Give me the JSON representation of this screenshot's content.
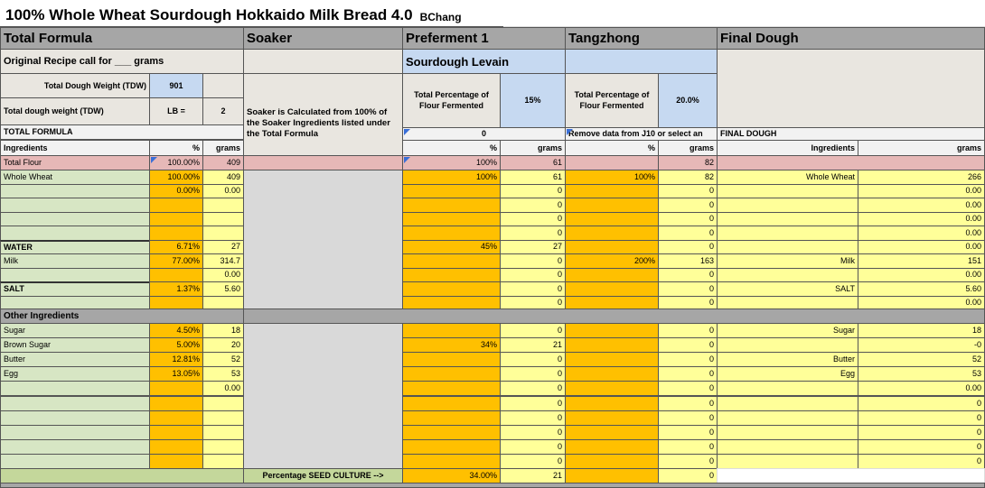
{
  "title": "100% Whole Wheat Sourdough Hokkaido Milk Bread 4.0",
  "author": "BChang",
  "sections": {
    "total_formula": "Total Formula",
    "soaker": "Soaker",
    "preferment": "Preferment 1",
    "tangzhong": "Tangzhong",
    "final_dough": "Final Dough"
  },
  "original_recipe_label": "Original Recipe call for ___ grams",
  "sourdough_levain": "Sourdough Levain",
  "tdw": {
    "label": "Total Dough Weight (TDW)",
    "value": "901"
  },
  "tdw_lb": {
    "label": "Total dough weight (TDW)",
    "unit": "LB =",
    "value": "2"
  },
  "soaker_note": "Soaker is Calculated from 100% of the Soaker Ingredients listed under the Total Formula",
  "pct_flour_fermented_label": "Total Percentage of Flour Fermented",
  "preferment_pct": "15%",
  "tangzhong_pct": "20.0%",
  "preferment_zero": "0",
  "remove_data_note": "Remove data from J10 or select an",
  "total_formula_label": "TOTAL FORMULA",
  "final_dough_label": "FINAL DOUGH",
  "col": {
    "ingredients": "Ingredients",
    "pct": "%",
    "grams": "grams"
  },
  "total_flour": {
    "label": "Total Flour",
    "pct": "100.00%",
    "grams": "409",
    "pre_pct": "100%",
    "pre_grams": "61",
    "tang_grams": "82"
  },
  "rows": [
    {
      "name": "Whole Wheat",
      "pct": "100.00%",
      "grams": "409",
      "pre_pct": "100%",
      "pre_grams": "61",
      "tang_pct": "100%",
      "tang_grams": "82",
      "fd_name": "Whole Wheat",
      "fd_grams": "266"
    },
    {
      "name": "",
      "pct": "0.00%",
      "grams": "0.00",
      "pre_pct": "",
      "pre_grams": "0",
      "tang_pct": "",
      "tang_grams": "0",
      "fd_name": "",
      "fd_grams": "0.00"
    },
    {
      "name": "",
      "pct": "",
      "grams": "",
      "pre_pct": "",
      "pre_grams": "0",
      "tang_pct": "",
      "tang_grams": "0",
      "fd_name": "",
      "fd_grams": "0.00"
    },
    {
      "name": "",
      "pct": "",
      "grams": "",
      "pre_pct": "",
      "pre_grams": "0",
      "tang_pct": "",
      "tang_grams": "0",
      "fd_name": "",
      "fd_grams": "0.00"
    },
    {
      "name": "",
      "pct": "",
      "grams": "",
      "pre_pct": "",
      "pre_grams": "0",
      "tang_pct": "",
      "tang_grams": "0",
      "fd_name": "",
      "fd_grams": "0.00"
    },
    {
      "name": "WATER",
      "pct": "6.71%",
      "grams": "27",
      "pre_pct": "45%",
      "pre_grams": "27",
      "tang_pct": "",
      "tang_grams": "0",
      "fd_name": "",
      "fd_grams": "0.00"
    },
    {
      "name": "Milk",
      "pct": "77.00%",
      "grams": "314.7",
      "pre_pct": "",
      "pre_grams": "0",
      "tang_pct": "200%",
      "tang_grams": "163",
      "fd_name": "Milk",
      "fd_grams": "151"
    },
    {
      "name": "",
      "pct": "",
      "grams": "0.00",
      "pre_pct": "",
      "pre_grams": "0",
      "tang_pct": "",
      "tang_grams": "0",
      "fd_name": "",
      "fd_grams": "0.00"
    },
    {
      "name": "SALT",
      "pct": "1.37%",
      "grams": "5.60",
      "pre_pct": "",
      "pre_grams": "0",
      "tang_pct": "",
      "tang_grams": "0",
      "fd_name": "SALT",
      "fd_grams": "5.60"
    },
    {
      "name": "",
      "pct": "",
      "grams": "",
      "pre_pct": "",
      "pre_grams": "0",
      "tang_pct": "",
      "tang_grams": "0",
      "fd_name": "",
      "fd_grams": "0.00"
    }
  ],
  "other_ingredients_label": "Other Ingredients",
  "other_rows": [
    {
      "name": "Sugar",
      "pct": "4.50%",
      "grams": "18",
      "pre_pct": "",
      "pre_grams": "0",
      "tang_grams": "0",
      "fd_name": "Sugar",
      "fd_grams": "18"
    },
    {
      "name": "Brown Sugar",
      "pct": "5.00%",
      "grams": "20",
      "pre_pct": "34%",
      "pre_grams": "21",
      "tang_grams": "0",
      "fd_name": "",
      "fd_grams": "-0"
    },
    {
      "name": "Butter",
      "pct": "12.81%",
      "grams": "52",
      "pre_pct": "",
      "pre_grams": "0",
      "tang_grams": "0",
      "fd_name": "Butter",
      "fd_grams": "52"
    },
    {
      "name": "Egg",
      "pct": "13.05%",
      "grams": "53",
      "pre_pct": "",
      "pre_grams": "0",
      "tang_grams": "0",
      "fd_name": "Egg",
      "fd_grams": "53"
    },
    {
      "name": "",
      "pct": "",
      "grams": "0.00",
      "pre_pct": "",
      "pre_grams": "0",
      "tang_grams": "0",
      "fd_name": "",
      "fd_grams": "0.00"
    },
    {
      "name": "",
      "pct": "",
      "grams": "",
      "pre_pct": "",
      "pre_grams": "0",
      "tang_grams": "0",
      "fd_name": "",
      "fd_grams": "0"
    },
    {
      "name": "",
      "pct": "",
      "grams": "",
      "pre_pct": "",
      "pre_grams": "0",
      "tang_grams": "0",
      "fd_name": "",
      "fd_grams": "0"
    },
    {
      "name": "",
      "pct": "",
      "grams": "",
      "pre_pct": "",
      "pre_grams": "0",
      "tang_grams": "0",
      "fd_name": "",
      "fd_grams": "0"
    },
    {
      "name": "",
      "pct": "",
      "grams": "",
      "pre_pct": "",
      "pre_grams": "0",
      "tang_grams": "0",
      "fd_name": "",
      "fd_grams": "0"
    },
    {
      "name": "",
      "pct": "",
      "grams": "",
      "pre_pct": "",
      "pre_grams": "0",
      "tang_grams": "0",
      "fd_name": "",
      "fd_grams": "0"
    }
  ],
  "seed_culture": {
    "label": "Percentage SEED CULTURE  -->",
    "pct": "34.00%",
    "grams": "21",
    "tang_grams": "0"
  }
}
